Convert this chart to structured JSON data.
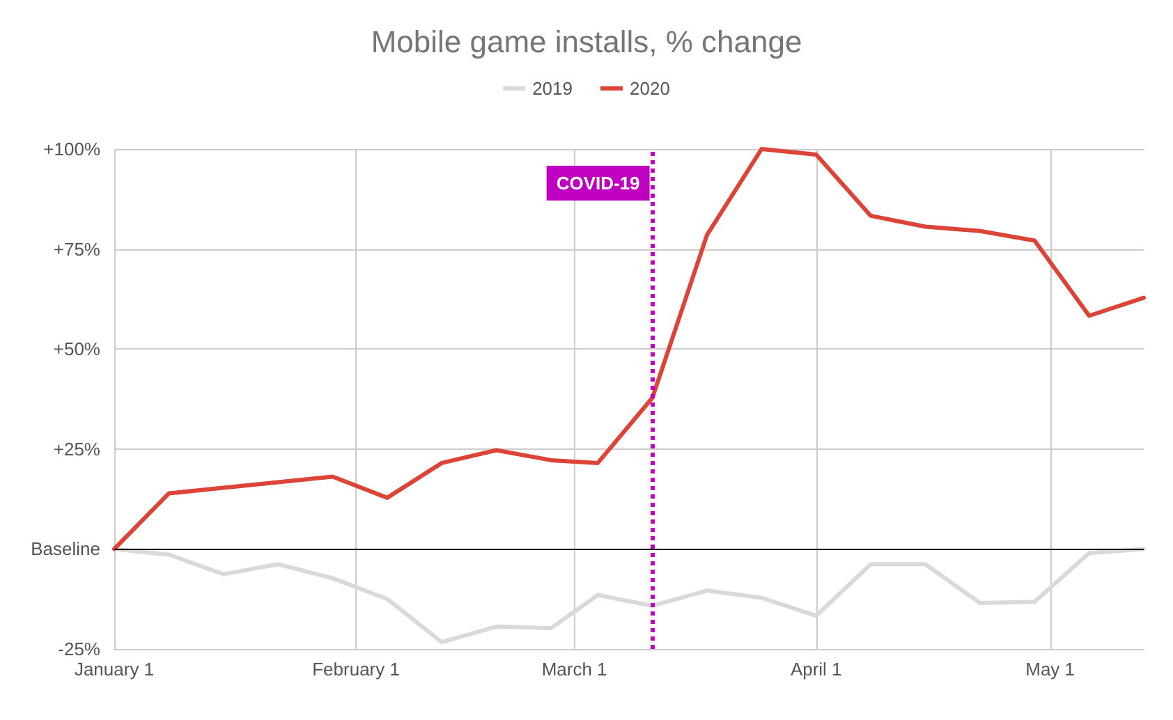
{
  "chart_data": {
    "type": "line",
    "title": "Mobile game installs, % change",
    "x": [
      "--01-01",
      "--01-08",
      "--01-15",
      "--01-22",
      "--01-29",
      "--02-05",
      "--02-12",
      "--02-19",
      "--02-26",
      "--03-04",
      "--03-11",
      "--03-18",
      "--03-25",
      "--04-01",
      "--04-08",
      "--04-15",
      "--04-22",
      "--04-29",
      "--05-06",
      "--05-13"
    ],
    "series": [
      {
        "name": "2019",
        "color": "#d9d9d9",
        "values": [
          0,
          -1.4,
          -6.3,
          -3.8,
          -7.3,
          -12.5,
          -23.3,
          -19.4,
          -19.8,
          -11.5,
          -14.2,
          -10.4,
          -12.2,
          -16.7,
          -3.8,
          -3.8,
          -13.5,
          -13.2,
          -1,
          0
        ]
      },
      {
        "name": "2020",
        "color": "#db4437",
        "values": [
          0,
          13.9,
          15.3,
          16.7,
          18.1,
          12.8,
          21.5,
          24.7,
          22.2,
          21.5,
          37.8,
          78.5,
          100,
          98.6,
          83.3,
          80.6,
          79.5,
          77.1,
          58.3,
          62.8
        ]
      }
    ],
    "xlim": [
      "--01-01",
      "--05-13"
    ],
    "xticks": [
      {
        "value": "--01-01",
        "label": "January 1"
      },
      {
        "value": "--02-01",
        "label": "February 1"
      },
      {
        "value": "--03-01",
        "label": "March 1"
      },
      {
        "value": "--04-01",
        "label": "April 1"
      },
      {
        "value": "--05-01",
        "label": "May 1"
      }
    ],
    "ylim": [
      -25,
      100
    ],
    "yticks": [
      {
        "value": -25,
        "label": "-25%"
      },
      {
        "value": 0,
        "label": "Baseline"
      },
      {
        "value": 25,
        "label": "+25%"
      },
      {
        "value": 50,
        "label": "+50%"
      },
      {
        "value": 75,
        "label": "+75%"
      },
      {
        "value": 100,
        "label": "+100%"
      }
    ],
    "ref_lines": [
      {
        "axis": "x",
        "value": "--03-11",
        "label": "COVID-19",
        "color": "#c000c0",
        "line_style": "dotted"
      },
      {
        "axis": "y",
        "value": 0,
        "color": "#000000",
        "line_style": "solid"
      }
    ],
    "grid": true,
    "legend": "top",
    "marker": "none",
    "line_style": "solid"
  }
}
